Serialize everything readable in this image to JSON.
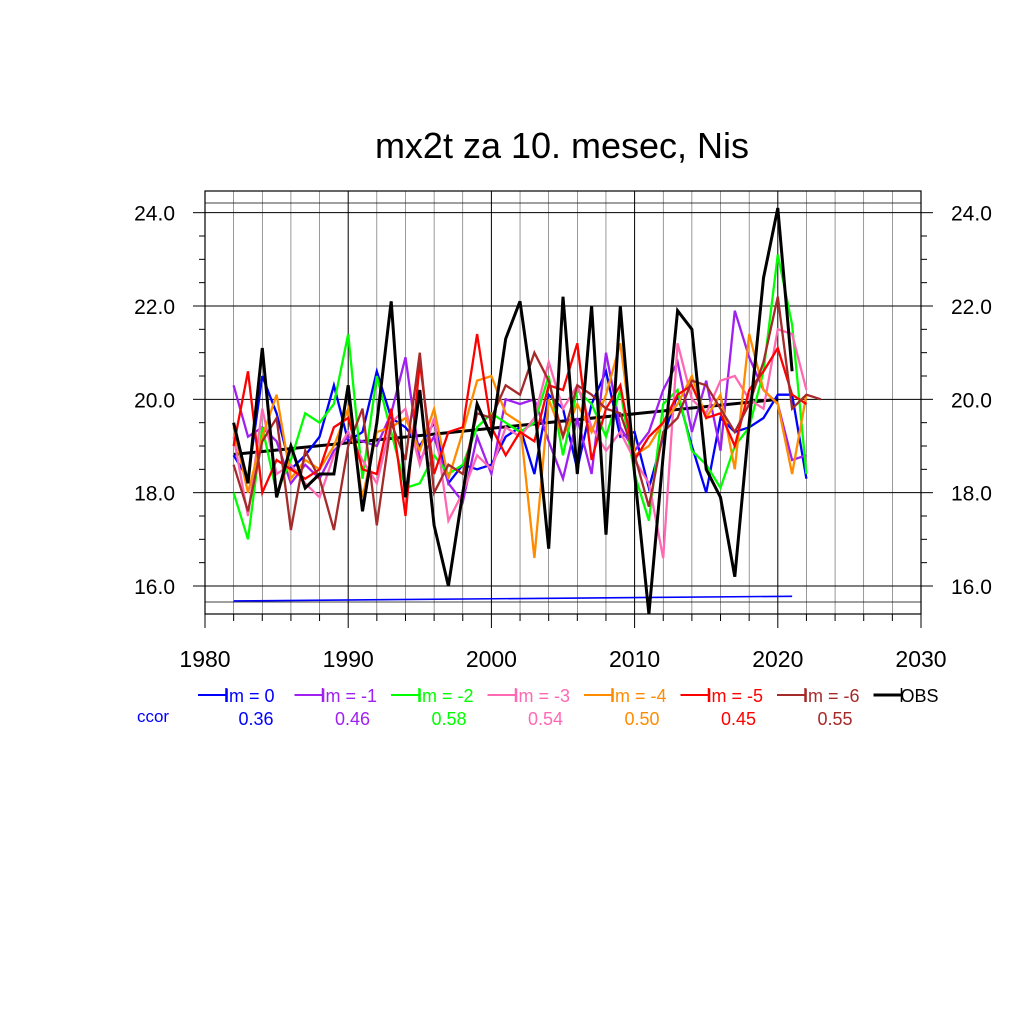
{
  "chart_data": {
    "type": "line",
    "title": "mx2t za 10. mesec, Nis",
    "xlabel": "",
    "ylabel": "",
    "xlim": [
      1980,
      2030
    ],
    "ylim": [
      15.4,
      24.1
    ],
    "x_ticks": [
      "1980",
      "1990",
      "2000",
      "2010",
      "2020",
      "2030"
    ],
    "y_ticks": [
      "16.0",
      "18.0",
      "20.0",
      "22.0",
      "24.0"
    ],
    "grid": true,
    "legend_position": "bottom",
    "ccor_label": "ccor",
    "series": [
      {
        "name": "lm = 0",
        "ccor": "0.36",
        "color": "#0000ff",
        "x_start": 1982,
        "values": [
          18.8,
          18.3,
          20.5,
          19.7,
          18.5,
          18.8,
          19.2,
          20.3,
          19.1,
          19.3,
          20.6,
          19.6,
          19.4,
          19.0,
          19.5,
          18.2,
          18.6,
          18.5,
          18.6,
          19.2,
          19.4,
          18.4,
          20.1,
          19.8,
          18.5,
          19.9,
          20.6,
          19.2,
          19.3,
          18.1,
          19.2,
          20.1,
          19.0,
          18.0,
          19.6,
          19.3,
          19.4,
          19.6,
          20.1,
          20.1,
          18.3
        ]
      },
      {
        "name": "lm = -1",
        "ccor": "0.46",
        "color": "#a020f0",
        "x_start": 1982,
        "values": [
          20.3,
          19.2,
          19.4,
          19.1,
          18.2,
          18.6,
          18.3,
          18.9,
          19.2,
          19.1,
          19.0,
          19.7,
          20.9,
          18.7,
          19.2,
          18.2,
          17.8,
          19.2,
          18.4,
          20.0,
          19.9,
          20.0,
          19.1,
          18.3,
          19.6,
          18.4,
          21.0,
          19.4,
          18.9,
          19.3,
          20.2,
          20.8,
          19.3,
          20.4,
          18.9,
          21.9,
          20.9,
          20.2,
          19.9,
          18.7,
          18.8
        ]
      },
      {
        "name": "lm = -2",
        "ccor": "0.58",
        "color": "#00ff00",
        "x_start": 1982,
        "values": [
          18.0,
          17.0,
          19.4,
          18.0,
          18.7,
          19.7,
          19.5,
          19.9,
          21.4,
          18.3,
          20.5,
          19.3,
          18.1,
          18.2,
          18.8,
          18.4,
          18.6,
          19.4,
          19.7,
          19.5,
          19.3,
          19.5,
          20.5,
          18.8,
          20.2,
          19.9,
          19.2,
          20.2,
          18.4,
          17.4,
          19.9,
          20.2,
          18.9,
          18.6,
          18.1,
          19.0,
          19.4,
          20.6,
          23.1,
          21.6,
          18.4
        ]
      },
      {
        "name": "lm = -3",
        "ccor": "0.54",
        "color": "#ff69b4",
        "x_start": 1982,
        "values": [
          19.2,
          17.5,
          19.8,
          18.4,
          18.6,
          18.2,
          17.9,
          18.8,
          19.3,
          18.7,
          18.2,
          19.5,
          19.8,
          18.6,
          19.6,
          17.4,
          18.0,
          18.8,
          18.5,
          19.4,
          19.2,
          19.6,
          20.8,
          19.8,
          20.3,
          19.4,
          18.9,
          19.3,
          18.7,
          18.2,
          16.6,
          21.2,
          20.0,
          19.7,
          20.4,
          20.5,
          20.0,
          19.8,
          21.5,
          21.4,
          20.2
        ]
      },
      {
        "name": "lm = -4",
        "ccor": "0.50",
        "color": "#ff8c00",
        "x_start": 1982,
        "values": [
          19.4,
          18.0,
          19.2,
          20.1,
          18.3,
          18.7,
          18.5,
          19.0,
          19.8,
          17.9,
          19.3,
          19.4,
          19.6,
          18.9,
          19.8,
          18.3,
          19.3,
          20.4,
          20.5,
          19.7,
          19.5,
          16.6,
          20.0,
          19.2,
          19.9,
          19.3,
          20.1,
          21.2,
          18.8,
          19.0,
          19.5,
          19.9,
          20.5,
          19.6,
          20.1,
          18.5,
          21.4,
          20.2,
          19.9,
          18.4,
          20.1
        ]
      },
      {
        "name": "lm = -5",
        "ccor": "0.45",
        "color": "#ff0000",
        "x_start": 1982,
        "values": [
          19.0,
          20.6,
          18.0,
          18.7,
          18.5,
          18.3,
          18.5,
          19.4,
          19.6,
          18.5,
          18.4,
          19.8,
          17.5,
          20.8,
          18.4,
          19.3,
          19.4,
          21.4,
          19.4,
          18.8,
          19.3,
          19.1,
          20.3,
          20.2,
          21.2,
          18.7,
          19.8,
          20.3,
          18.7,
          19.2,
          19.5,
          20.1,
          20.3,
          19.6,
          19.7,
          19.0,
          20.2,
          20.6,
          21.1,
          20.1,
          19.9
        ]
      },
      {
        "name": "lm = -6",
        "ccor": "0.55",
        "color": "#a52a2a",
        "x_start": 1982,
        "values": [
          18.6,
          17.6,
          19.1,
          19.6,
          17.2,
          18.9,
          18.3,
          17.2,
          19.0,
          19.8,
          17.3,
          19.5,
          18.7,
          21.0,
          18.0,
          18.6,
          18.4,
          19.7,
          19.6,
          20.3,
          20.1,
          21.0,
          20.4,
          19.2,
          20.3,
          20.1,
          19.8,
          19.7,
          18.8,
          17.7,
          19.3,
          19.6,
          20.4,
          20.3,
          19.8,
          19.3,
          19.9,
          20.8,
          22.2,
          19.8,
          20.1,
          20.0
        ]
      },
      {
        "name": "OBS",
        "ccor": "",
        "color": "#000000",
        "x_start": 1982,
        "values": [
          19.5,
          18.2,
          21.1,
          17.9,
          19.0,
          18.1,
          18.4,
          18.4,
          20.3,
          17.6,
          19.5,
          22.1,
          17.9,
          20.2,
          17.3,
          16.0,
          18.0,
          19.9,
          19.2,
          21.3,
          22.1,
          19.9,
          16.8,
          22.2,
          18.4,
          22.0,
          17.1,
          22.0,
          18.4,
          15.4,
          18.8,
          21.9,
          21.5,
          18.5,
          17.9,
          16.2,
          19.5,
          22.6,
          24.1,
          20.6
        ]
      }
    ],
    "trend_lines": [
      {
        "name": "OBS trend",
        "color": "#000000",
        "x": [
          1982,
          2020
        ],
        "values": [
          18.82,
          20.0
        ]
      },
      {
        "name": "lm = 0 trend",
        "color": "#0000ff",
        "x": [
          1982,
          2021
        ],
        "values": [
          15.68,
          15.78
        ]
      }
    ]
  }
}
